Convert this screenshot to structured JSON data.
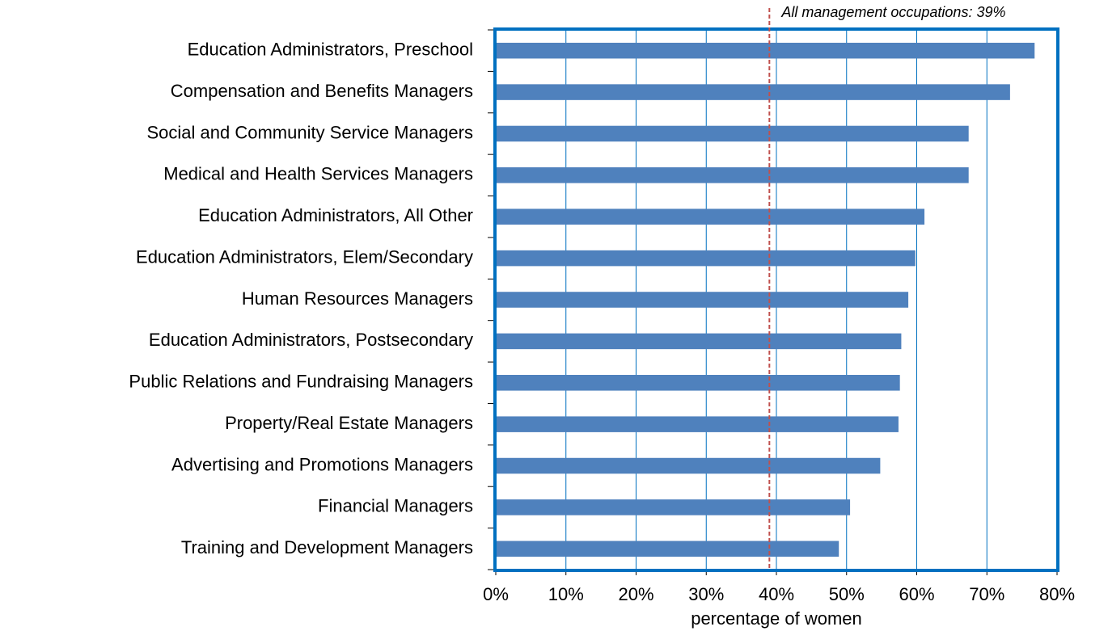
{
  "chart_data": {
    "type": "barh",
    "x_label": "percentage of women",
    "categories": [
      "Education Administrators, Preschool",
      "Compensation and Benefits Managers",
      "Social and Community Service Managers",
      "Medical and Health Services Managers",
      "Education Administrators, All Other",
      "Education Administrators, Elem/Secondary",
      "Human Resources Managers",
      "Education Administrators, Postsecondary",
      "Public Relations and Fundraising Managers",
      "Property/Real Estate Managers",
      "Advertising and Promotions Managers",
      "Financial Managers",
      "Training and Development Managers"
    ],
    "values": [
      76.8,
      73.3,
      67.4,
      67.4,
      61.1,
      59.8,
      58.8,
      57.8,
      57.6,
      57.4,
      54.8,
      50.5,
      48.9
    ],
    "color": "#4f81bd",
    "xlim": [
      0,
      80
    ],
    "xticks": [
      {
        "value": 0,
        "label": "0%"
      },
      {
        "value": 10,
        "label": "10%"
      },
      {
        "value": 20,
        "label": "20%"
      },
      {
        "value": 30,
        "label": "30%"
      },
      {
        "value": 40,
        "label": "40%"
      },
      {
        "value": 50,
        "label": "50%"
      },
      {
        "value": 60,
        "label": "60%"
      },
      {
        "value": 70,
        "label": "70%"
      },
      {
        "value": 80,
        "label": "80%"
      }
    ],
    "grid": true,
    "reference_line": {
      "value": 39,
      "label": "All management occupations: 39%",
      "color": "#c0504d"
    }
  }
}
